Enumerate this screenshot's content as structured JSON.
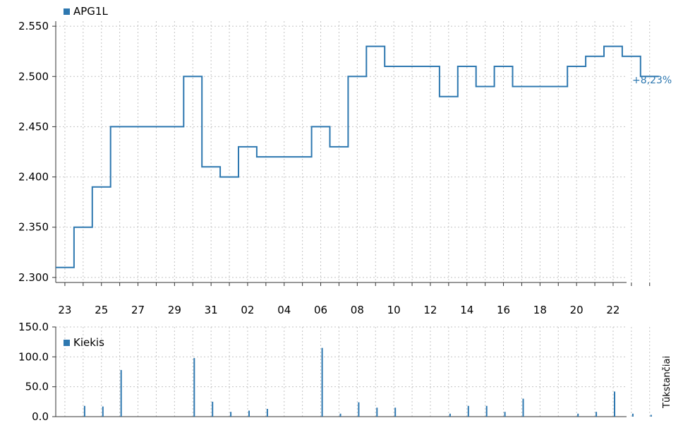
{
  "chart_data": [
    {
      "type": "line",
      "legend_label": "APG1L",
      "change_label": "+8,23%",
      "y_tick_labels": [
        "2.300",
        "2.350",
        "2.400",
        "2.450",
        "2.500",
        "2.550"
      ],
      "x_tick_labels": [
        "23",
        "25",
        "27",
        "29",
        "31",
        "02",
        "04",
        "06",
        "08",
        "10",
        "12",
        "14",
        "16",
        "18",
        "20",
        "22"
      ],
      "ylim": [
        2.295,
        2.555
      ],
      "grid": true,
      "legend_position": "top-left",
      "series": [
        {
          "name": "APG1L",
          "style": "step",
          "values": [
            2.31,
            2.35,
            2.39,
            2.45,
            2.45,
            2.45,
            2.45,
            2.5,
            2.41,
            2.4,
            2.43,
            2.42,
            2.42,
            2.42,
            2.45,
            2.43,
            2.5,
            2.53,
            2.51,
            2.51,
            2.51,
            2.48,
            2.51,
            2.49,
            2.51,
            2.49,
            2.49,
            2.49,
            2.51,
            2.52,
            2.53,
            2.52,
            2.5
          ]
        }
      ]
    },
    {
      "type": "bar",
      "legend_label": "Kiekis",
      "ylabel": "Tūkstančiai",
      "y_tick_labels": [
        "0.0",
        "50.0",
        "100.0",
        "150.0"
      ],
      "ylim": [
        0,
        150
      ],
      "grid": true,
      "legend_position": "top-left",
      "series": [
        {
          "name": "Kiekis",
          "values": [
            0,
            18,
            17,
            78,
            0,
            0,
            0,
            98,
            25,
            8,
            10,
            13,
            0,
            0,
            115,
            5,
            24,
            15,
            15,
            0,
            0,
            5,
            18,
            18,
            8,
            30,
            0,
            0,
            5,
            8,
            42,
            5,
            3
          ]
        }
      ]
    }
  ],
  "colors": {
    "line": "#2e78b0",
    "bar": "#2e78b0",
    "axis": "#333333",
    "grid": "#c4c4c4",
    "text": "#000000",
    "change": "#2e78b0"
  }
}
